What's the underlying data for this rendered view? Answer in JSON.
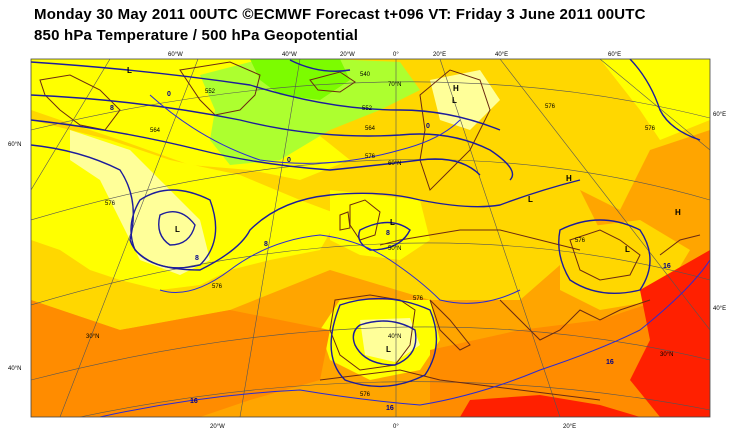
{
  "title": {
    "line1": "Monday 30 May 2011 00UTC ©ECMWF Forecast t+096 VT: Friday 3 June 2011 00UTC",
    "line2": "850 hPa Temperature / 500 hPa Geopotential"
  },
  "lon_labels_top": [
    "60°W",
    "40°W",
    "20°W",
    "0°",
    "20°E",
    "40°E",
    "60°E"
  ],
  "lon_labels_bottom": [
    "20°W",
    "0°",
    "20°E"
  ],
  "lat_labels_left": [
    "60°N",
    "40°N"
  ],
  "lat_labels_right": [
    "60°E",
    "40°E"
  ],
  "lat_labels_inside": [
    "70°N",
    "60°N",
    "50°N",
    "40°N",
    "30°N"
  ],
  "geopotential_labels": [
    "540",
    "552",
    "564",
    "576",
    "576",
    "576",
    "564",
    "576",
    "576",
    "576",
    "576",
    "576"
  ],
  "temperature_labels": [
    "0",
    "0",
    "0",
    "8",
    "8",
    "8",
    "8",
    "16",
    "16",
    "16",
    "16"
  ],
  "pressure_centers": [
    "L",
    "L",
    "L",
    "L",
    "L",
    "L",
    "L",
    "H",
    "H",
    "H"
  ],
  "colors": {
    "yellow": "#ffff00",
    "pale_yellow": "#ffff99",
    "gold": "#ffd700",
    "orange": "#ffa500",
    "dark_orange": "#ff8c00",
    "red": "#ff0000",
    "lime": "#adff2f",
    "green": "#7cfc00",
    "contour_blue": "#1c1c9c",
    "coast": "#6b2a12"
  }
}
